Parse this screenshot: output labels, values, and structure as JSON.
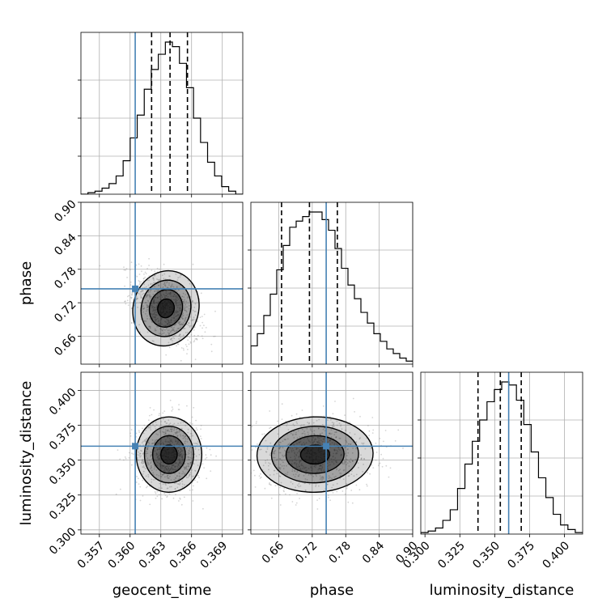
{
  "chart_data": {
    "type": "corner",
    "grid": true,
    "parameters": [
      "geocent_time",
      "phase",
      "luminosity_distance"
    ],
    "axis_labels": {
      "geocent_time": "geocent_time",
      "phase": "phase",
      "luminosity_distance": "luminosity_distance"
    },
    "ranges": {
      "geocent_time": [
        0.3552,
        0.371
      ],
      "phase": [
        0.61,
        0.9
      ],
      "luminosity_distance": [
        0.297,
        0.413
      ]
    },
    "ticks": {
      "geocent_time": {
        "values": [
          0.357,
          0.36,
          0.363,
          0.366,
          0.369
        ],
        "labels": [
          "0.357",
          "0.360",
          "0.363",
          "0.366",
          "0.369"
        ]
      },
      "phase": {
        "values": [
          0.66,
          0.72,
          0.78,
          0.84,
          0.9
        ],
        "labels": [
          "0.66",
          "0.72",
          "0.78",
          "0.84",
          "0.90"
        ]
      },
      "luminosity_distance": {
        "values": [
          0.3,
          0.325,
          0.35,
          0.375,
          0.4
        ],
        "labels": [
          "0.300",
          "0.325",
          "0.350",
          "0.375",
          "0.400"
        ]
      }
    },
    "truths": {
      "geocent_time": 0.3605,
      "phase": 0.745,
      "luminosity_distance": 0.36
    },
    "quantiles": {
      "geocent_time": [
        0.3621,
        0.3639,
        0.3656
      ],
      "phase": [
        0.665,
        0.715,
        0.765
      ],
      "luminosity_distance": [
        0.338,
        0.354,
        0.369
      ]
    },
    "histograms": {
      "geocent_time": {
        "counts": [
          0.0,
          0.01,
          0.02,
          0.04,
          0.07,
          0.12,
          0.22,
          0.37,
          0.52,
          0.69,
          0.82,
          0.92,
          1.0,
          0.97,
          0.86,
          0.7,
          0.5,
          0.34,
          0.21,
          0.12,
          0.05,
          0.02,
          0.0
        ]
      },
      "phase": {
        "counts": [
          0.12,
          0.2,
          0.32,
          0.46,
          0.62,
          0.78,
          0.9,
          0.94,
          0.97,
          1.0,
          1.0,
          0.95,
          0.88,
          0.76,
          0.63,
          0.52,
          0.43,
          0.34,
          0.27,
          0.2,
          0.15,
          0.1,
          0.07,
          0.04,
          0.02
        ]
      },
      "luminosity_distance": {
        "counts": [
          0.01,
          0.02,
          0.04,
          0.09,
          0.16,
          0.3,
          0.46,
          0.61,
          0.75,
          0.87,
          0.95,
          1.0,
          0.98,
          0.88,
          0.72,
          0.54,
          0.37,
          0.24,
          0.13,
          0.06,
          0.03,
          0.01
        ]
      }
    },
    "joint": {
      "phase_vs_geocent_time": {
        "mean": [
          0.3635,
          0.71
        ],
        "sd": [
          0.0016,
          0.034
        ],
        "corr": -0.45
      },
      "luminosity_distance_vs_geocent_time": {
        "mean": [
          0.3638,
          0.354
        ],
        "sd": [
          0.0016,
          0.0135
        ],
        "corr": 0.0
      },
      "luminosity_distance_vs_phase": {
        "mean": [
          0.725,
          0.354
        ],
        "sd": [
          0.052,
          0.0135
        ],
        "corr": 0.05
      }
    },
    "colors": {
      "truth": "#4682b4",
      "hist": "#000000",
      "grid": "#b0b0b0",
      "scatter": "#888888"
    }
  }
}
